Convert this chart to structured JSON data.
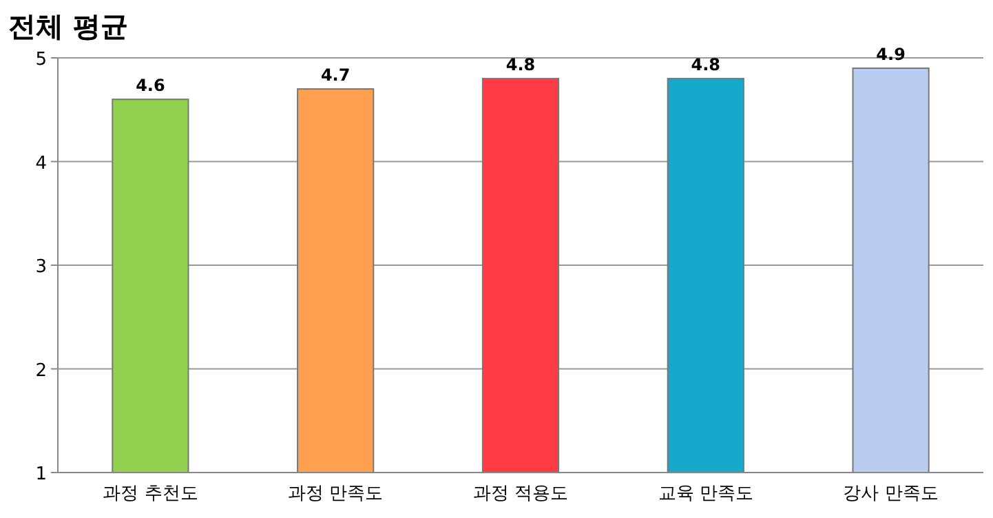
{
  "chart_data": {
    "type": "bar",
    "title": "전체 평균",
    "categories": [
      "과정 추천도",
      "과정 만족도",
      "과정 적용도",
      "교육 만족도",
      "강사 만족도"
    ],
    "values": [
      4.6,
      4.7,
      4.8,
      4.8,
      4.9
    ],
    "colors": [
      "#92d050",
      "#ffa050",
      "#ff3b45",
      "#17a8cc",
      "#b8cdf0"
    ],
    "ylim": [
      1,
      5
    ],
    "yticks": [
      1,
      2,
      3,
      4,
      5
    ],
    "grid": "y",
    "data_labels": true
  }
}
